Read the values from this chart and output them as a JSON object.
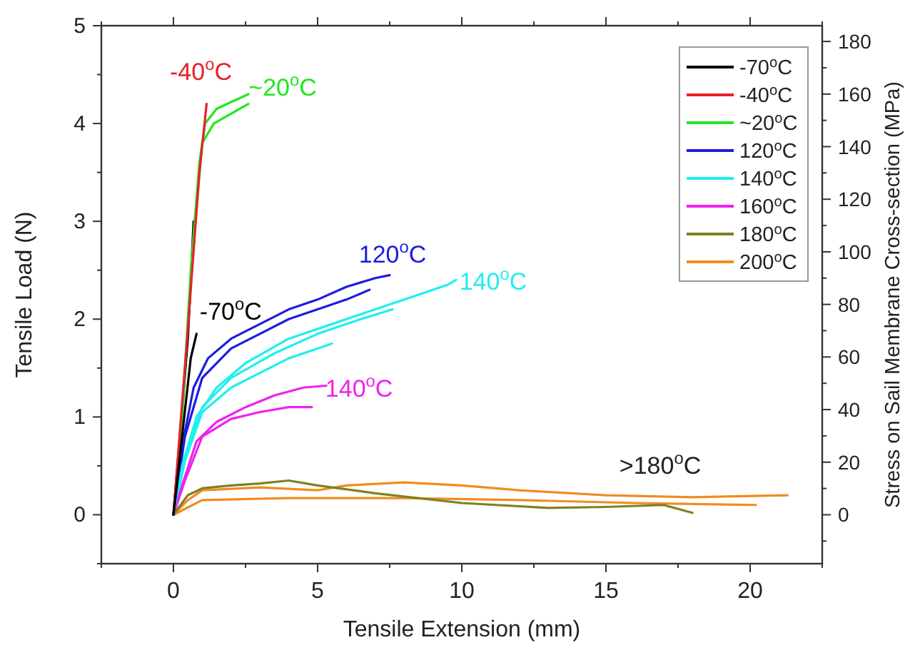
{
  "chart_data": {
    "type": "line",
    "xlabel": "Tensile Extension (mm)",
    "ylabel": "Tensile Load (N)",
    "y2label": "Stress on Sail Membrane Cross-section (MPa)",
    "xlim": [
      -2.5,
      22.5
    ],
    "xticks": [
      {
        "value": -2.5,
        "label": null
      },
      0,
      {
        "value": 2.5,
        "label": null
      },
      5,
      {
        "value": 7.5,
        "label": null
      },
      10,
      {
        "value": 12.5,
        "label": null
      },
      15,
      {
        "value": 17.5,
        "label": null
      },
      20,
      {
        "value": 22.5,
        "label": null
      }
    ],
    "ylim": [
      -0.5,
      5
    ],
    "yticks": [
      {
        "value": -0.5,
        "label": null
      },
      0,
      {
        "value": 0.5,
        "label": null
      },
      1,
      {
        "value": 1.5,
        "label": null
      },
      2,
      {
        "value": 2.5,
        "label": null
      },
      3,
      {
        "value": 3.5,
        "label": null
      },
      4,
      {
        "value": 4.5,
        "label": null
      },
      5
    ],
    "y2lim": [
      -18.6,
      186
    ],
    "y2ticks": [
      {
        "value": -10,
        "label": null
      },
      0,
      {
        "value": 10,
        "label": null
      },
      20,
      {
        "value": 30,
        "label": null
      },
      40,
      {
        "value": 50,
        "label": null
      },
      60,
      {
        "value": 70,
        "label": null
      },
      80,
      {
        "value": 90,
        "label": null
      },
      100,
      {
        "value": 110,
        "label": null
      },
      120,
      {
        "value": 130,
        "label": null
      },
      140,
      {
        "value": 150,
        "label": null
      },
      160,
      {
        "value": 170,
        "label": null
      },
      180
    ],
    "grid": false,
    "legend": "top right",
    "marker": "none",
    "line_style": "solid",
    "series": [
      {
        "name": "-70$^{o}$C",
        "color": "#000000",
        "x": [
          0,
          0.3,
          0.6,
          0.8
        ],
        "values": [
          0,
          0.8,
          1.6,
          1.85
        ]
      },
      {
        "name": "-40$^{o}$C",
        "color": "#e8202a",
        "x": [
          0,
          0.5,
          0.9,
          1.15
        ],
        "values": [
          0,
          1.9,
          3.5,
          4.2
        ]
      },
      {
        "name": "~20$^{o}$C",
        "color": "#22e622",
        "x": [
          0,
          0.3,
          0.6,
          0.9,
          1.1,
          1.5,
          2.0,
          2.6
        ],
        "values": [
          0,
          1.0,
          2.5,
          3.6,
          4.0,
          4.15,
          4.22,
          4.3
        ]
      },
      {
        "name": "120$^{o}$C",
        "color": "#1c1ce0",
        "x": [
          0,
          0.3,
          0.7,
          1.2,
          2,
          3,
          4,
          5,
          6,
          7,
          7.5
        ],
        "values": [
          0,
          0.7,
          1.3,
          1.6,
          1.8,
          1.95,
          2.1,
          2.2,
          2.33,
          2.42,
          2.45
        ]
      },
      {
        "name": "140$^{o}$C",
        "color": "#22eeee",
        "x": [
          0,
          0.3,
          0.8,
          1.5,
          2.5,
          4,
          5.5,
          7,
          8.5,
          9.5,
          9.8
        ],
        "values": [
          0,
          0.5,
          1.0,
          1.3,
          1.55,
          1.8,
          1.95,
          2.1,
          2.25,
          2.35,
          2.4
        ]
      },
      {
        "name": "160$^{o}$C",
        "color": "#ee22ee",
        "x": [
          0,
          0.3,
          0.8,
          1.5,
          2.5,
          3.5,
          4.5,
          5.3
        ],
        "values": [
          0,
          0.3,
          0.75,
          0.95,
          1.1,
          1.22,
          1.3,
          1.32
        ]
      },
      {
        "name": "180$^{o}$C",
        "color": "#808020",
        "x": [
          0,
          0.5,
          1,
          2,
          3,
          4,
          5,
          7,
          10,
          13,
          15,
          17,
          18
        ],
        "values": [
          0,
          0.2,
          0.27,
          0.3,
          0.32,
          0.35,
          0.3,
          0.22,
          0.12,
          0.07,
          0.08,
          0.1,
          0.02
        ]
      },
      {
        "name": "200$^{o}$C",
        "color": "#f08c1e",
        "x": [
          0,
          0.5,
          1,
          3,
          5,
          6,
          8,
          10,
          12,
          15,
          18,
          21.3
        ],
        "values": [
          0,
          0.15,
          0.25,
          0.28,
          0.25,
          0.3,
          0.33,
          0.3,
          0.25,
          0.2,
          0.18,
          0.2
        ]
      },
      {
        "color": "#000000",
        "x": [
          0,
          0.5,
          0.7
        ],
        "values": [
          0,
          1.8,
          3.0
        ]
      },
      {
        "color": "#22e622",
        "x": [
          0,
          0.35,
          0.7,
          1.0,
          1.4,
          2.0,
          2.6
        ],
        "values": [
          0,
          1.2,
          2.8,
          3.8,
          4.0,
          4.1,
          4.2
        ]
      },
      {
        "color": "#1c1ce0",
        "x": [
          0,
          0.4,
          1.0,
          2,
          3,
          4,
          5,
          6,
          6.8
        ],
        "values": [
          0,
          0.8,
          1.4,
          1.7,
          1.85,
          2.0,
          2.1,
          2.2,
          2.3
        ]
      },
      {
        "color": "#22eeee",
        "x": [
          0,
          0.4,
          1,
          2,
          3,
          4,
          5,
          5.5
        ],
        "values": [
          0,
          0.55,
          1.05,
          1.3,
          1.45,
          1.6,
          1.7,
          1.75
        ]
      },
      {
        "color": "#22eeee",
        "x": [
          0,
          0.4,
          1,
          2,
          3.5,
          5,
          6.5,
          7.6
        ],
        "values": [
          0,
          0.6,
          1.1,
          1.4,
          1.65,
          1.85,
          2.0,
          2.1
        ]
      },
      {
        "color": "#ee22ee",
        "x": [
          0,
          0.4,
          1,
          2,
          3,
          4,
          4.8
        ],
        "values": [
          0,
          0.35,
          0.8,
          0.98,
          1.05,
          1.1,
          1.1
        ]
      },
      {
        "color": "#f08c1e",
        "x": [
          0,
          1,
          4,
          8,
          12,
          16,
          20.2
        ],
        "values": [
          0,
          0.15,
          0.17,
          0.17,
          0.15,
          0.12,
          0.1
        ]
      }
    ],
    "annotations": [
      {
        "text": "-40$^{o}$C",
        "x": 1.15,
        "y": 4.2
      },
      {
        "text": "~20$^{o}$C",
        "x": 2.6,
        "y": 4.3
      },
      {
        "text": "-70$^{o}$C",
        "x": 0.8,
        "y": 1.85
      },
      {
        "text": "120$^{o}$C",
        "x": 7.5,
        "y": 2.45
      },
      {
        "text": "140$^{o}$C",
        "x": 9.8,
        "y": 2.4
      },
      {
        "text": "140$^{o}$C",
        "x": 5.3,
        "y": 1.32
      },
      {
        "text": ">180$^{o}$C",
        "x": 15,
        "y": 0.2
      }
    ]
  }
}
